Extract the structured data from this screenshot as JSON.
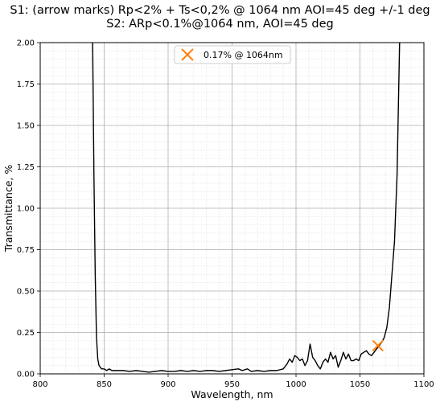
{
  "chart_data": {
    "type": "line",
    "title": [
      "S1: (arrow marks) Rp<2% + Ts<0,2% @ 1064  nm AOI=45 deg +/-1 deg",
      "S2: ARp<0.1%@1064 nm, AOI=45 deg"
    ],
    "xlabel": "Wavelength, nm",
    "ylabel": "Transmittance, %",
    "xlim": [
      800,
      1100
    ],
    "ylim": [
      0,
      2.0
    ],
    "xticks": [
      800,
      850,
      900,
      950,
      1000,
      1050,
      1100
    ],
    "yticks": [
      0.0,
      0.25,
      0.5,
      0.75,
      1.0,
      1.25,
      1.5,
      1.75,
      2.0
    ],
    "xtick_labels": [
      "800",
      "850",
      "900",
      "950",
      "1000",
      "1050",
      "1100"
    ],
    "ytick_labels": [
      "0.00",
      "0.25",
      "0.50",
      "0.75",
      "1.00",
      "1.25",
      "1.50",
      "1.75",
      "2.00"
    ],
    "grid": true,
    "minor_grid": true,
    "legend_position": "top-left",
    "series": [
      {
        "color": "#000000",
        "x": [
          841,
          842,
          843,
          844,
          845,
          846,
          847,
          848,
          850,
          852,
          854,
          856,
          858,
          860,
          865,
          870,
          875,
          880,
          885,
          890,
          895,
          900,
          905,
          910,
          915,
          920,
          925,
          930,
          935,
          940,
          945,
          950,
          955,
          958,
          962,
          965,
          970,
          975,
          980,
          985,
          990,
          993,
          995,
          997,
          999,
          1001,
          1003,
          1005,
          1007,
          1009,
          1011,
          1013,
          1015,
          1017,
          1019,
          1021,
          1023,
          1025,
          1027,
          1029,
          1031,
          1033,
          1035,
          1037,
          1039,
          1041,
          1043,
          1045,
          1047,
          1049,
          1051,
          1053,
          1055,
          1057,
          1059,
          1061,
          1063,
          1065,
          1067,
          1069,
          1071,
          1073,
          1075,
          1077,
          1079,
          1080,
          1081
        ],
        "y": [
          2.0,
          1.2,
          0.6,
          0.22,
          0.09,
          0.05,
          0.04,
          0.03,
          0.03,
          0.02,
          0.03,
          0.02,
          0.02,
          0.02,
          0.02,
          0.015,
          0.02,
          0.015,
          0.01,
          0.015,
          0.02,
          0.015,
          0.015,
          0.02,
          0.015,
          0.02,
          0.015,
          0.02,
          0.02,
          0.015,
          0.02,
          0.025,
          0.03,
          0.02,
          0.03,
          0.015,
          0.02,
          0.015,
          0.02,
          0.02,
          0.03,
          0.06,
          0.09,
          0.07,
          0.11,
          0.1,
          0.08,
          0.09,
          0.05,
          0.08,
          0.18,
          0.1,
          0.08,
          0.05,
          0.03,
          0.07,
          0.09,
          0.07,
          0.13,
          0.09,
          0.11,
          0.04,
          0.08,
          0.13,
          0.09,
          0.12,
          0.08,
          0.08,
          0.09,
          0.08,
          0.12,
          0.13,
          0.14,
          0.12,
          0.11,
          0.13,
          0.15,
          0.17,
          0.19,
          0.22,
          0.28,
          0.4,
          0.6,
          0.8,
          1.2,
          1.6,
          2.0
        ]
      }
    ],
    "markers": [
      {
        "label": "0.17% @ 1064nm",
        "x": 1064,
        "y": 0.17,
        "color": "#ff7f0e",
        "shape": "x"
      }
    ]
  }
}
